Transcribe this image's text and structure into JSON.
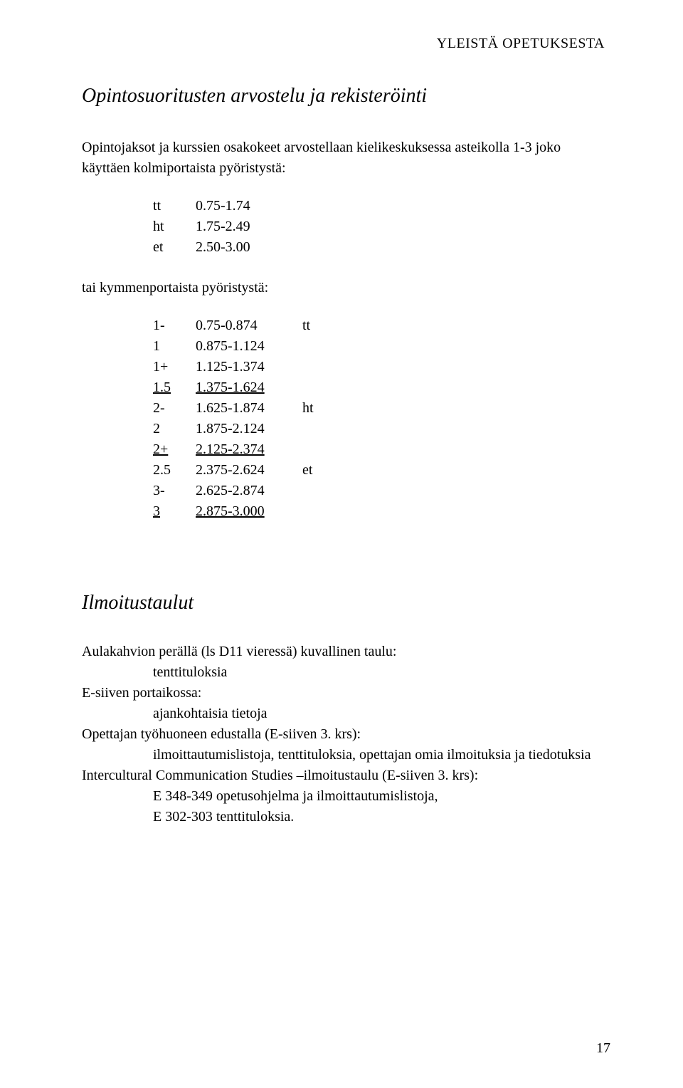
{
  "header": "YLEISTÄ OPETUKSESTA",
  "section1": {
    "title": "Opintosuoritusten arvostelu ja rekisteröinti",
    "intro": "Opintojaksot ja kurssien osakokeet arvostellaan kielikeskuksessa asteikolla 1-3 joko käyttäen kolmiportaista pyöristystä:",
    "table_a": [
      {
        "c1": "tt",
        "c2": "0.75-1.74",
        "c3": ""
      },
      {
        "c1": "ht",
        "c2": "1.75-2.49",
        "c3": ""
      },
      {
        "c1": "et",
        "c2": "2.50-3.00",
        "c3": ""
      }
    ],
    "mid": "tai kymmenportaista pyöristystä:",
    "table_b": [
      {
        "c1": "1-",
        "c2": "0.75-0.874",
        "c3": "tt",
        "ul": false
      },
      {
        "c1": "1",
        "c2": "0.875-1.124",
        "c3": "",
        "ul": false
      },
      {
        "c1": "1+",
        "c2": "1.125-1.374",
        "c3": "",
        "ul": false
      },
      {
        "c1": "1.5",
        "c2": "1.375-1.624",
        "c3": "",
        "ul": true
      },
      {
        "c1": "2-",
        "c2": "1.625-1.874",
        "c3": "ht",
        "ul": false
      },
      {
        "c1": "2",
        "c2": "1.875-2.124",
        "c3": "",
        "ul": false
      },
      {
        "c1": "2+",
        "c2": "2.125-2.374",
        "c3": "",
        "ul": true
      },
      {
        "c1": "2.5",
        "c2": "2.375-2.624",
        "c3": "et",
        "ul": false
      },
      {
        "c1": "3-",
        "c2": "2.625-2.874",
        "c3": "",
        "ul": false
      },
      {
        "c1": "3",
        "c2": "2.875-3.000",
        "c3": "",
        "ul": true
      }
    ]
  },
  "section2": {
    "title": "Ilmoitustaulut",
    "lines": [
      {
        "text": "Aulakahvion perällä (ls D11 vieressä) kuvallinen taulu:",
        "indent": 0
      },
      {
        "text": "tenttituloksia",
        "indent": 1
      },
      {
        "text": "E-siiven portaikossa:",
        "indent": 0
      },
      {
        "text": "ajankohtaisia tietoja",
        "indent": 1
      },
      {
        "text": "Opettajan työhuoneen edustalla (E-siiven 3. krs):",
        "indent": 0
      },
      {
        "text": "ilmoittautumislistoja, tenttituloksia, opettajan omia ilmoituksia ja tiedotuksia",
        "indent": 1
      },
      {
        "text": "Intercultural Communication Studies –ilmoitustaulu (E-siiven 3. krs):",
        "indent": 0
      },
      {
        "text": "E 348-349 opetusohjelma ja ilmoittautumislistoja,",
        "indent": 1
      },
      {
        "text": "E 302-303 tenttituloksia.",
        "indent": 1
      }
    ]
  },
  "page_number": "17"
}
